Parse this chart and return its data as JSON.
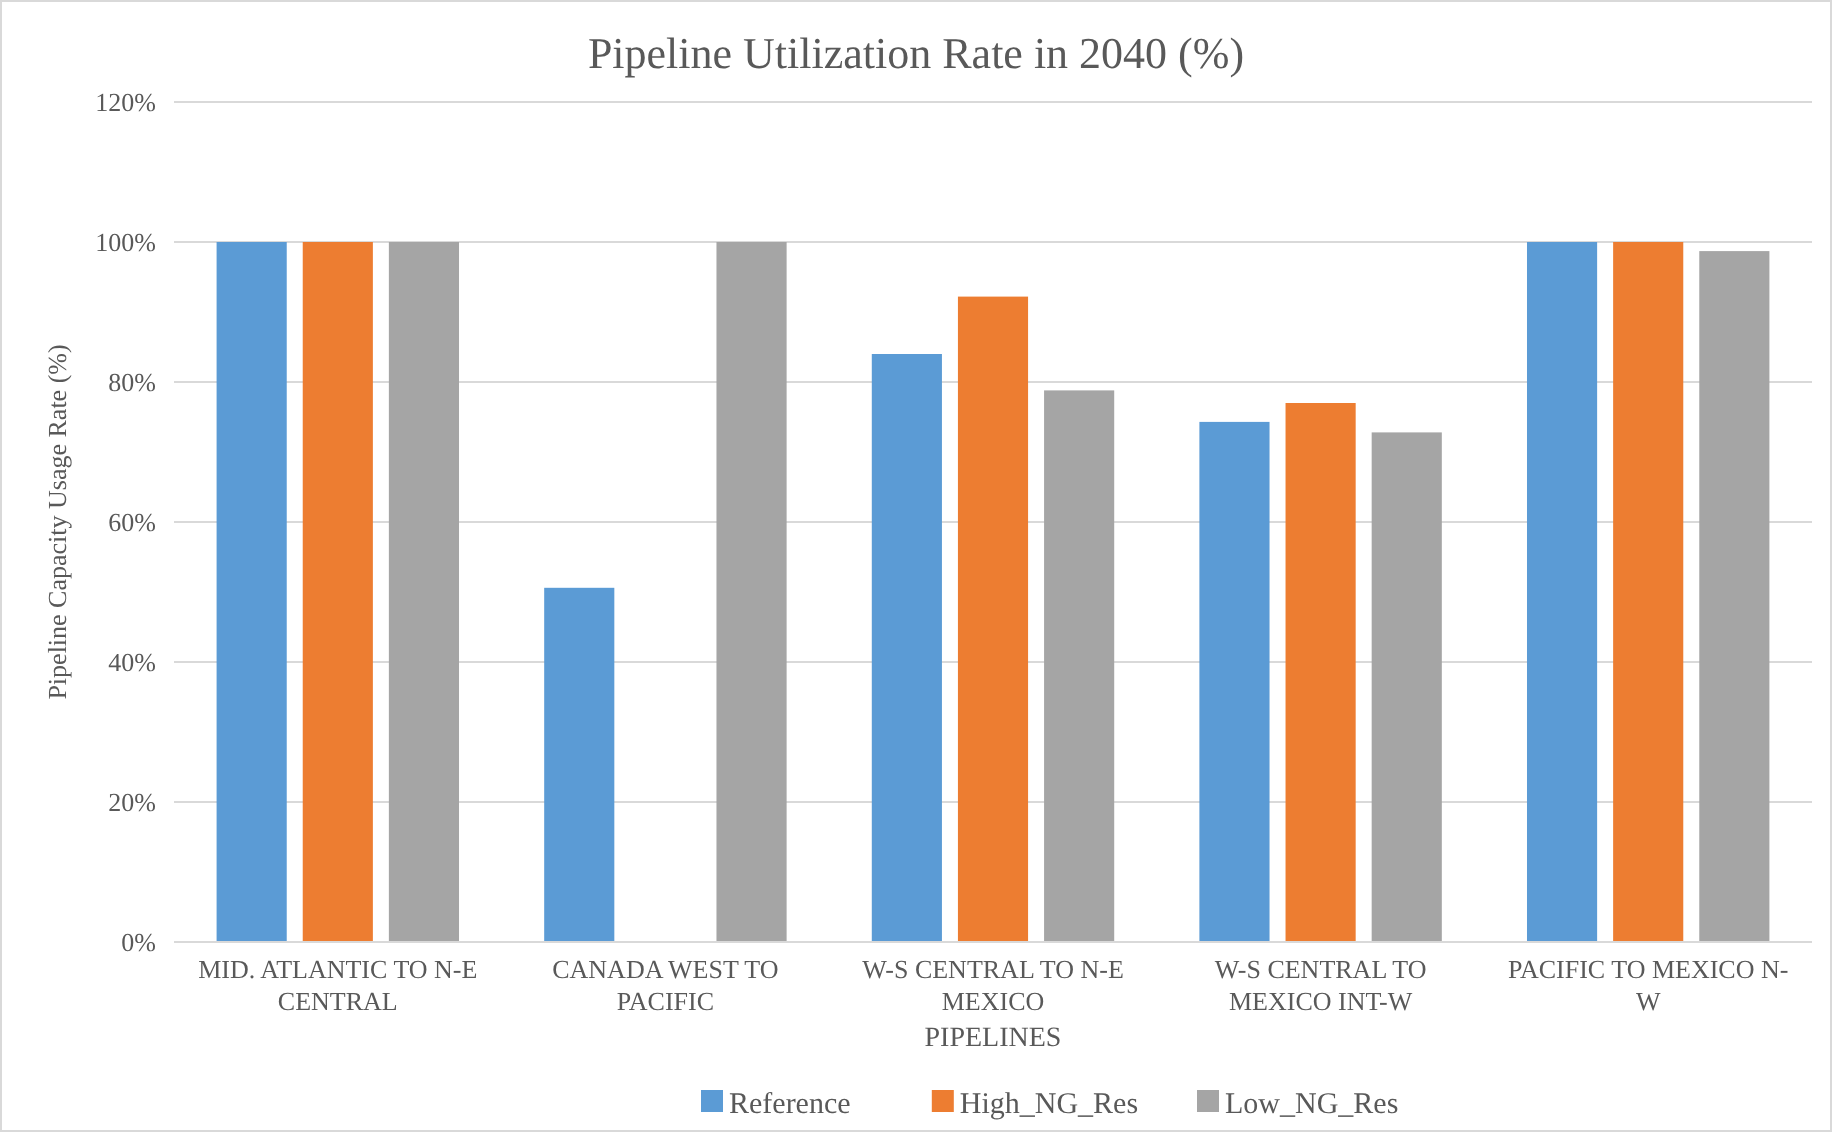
{
  "chart_data": {
    "type": "bar",
    "title": "Pipeline Utilization Rate in 2040 (%)",
    "xlabel": "PIPELINES",
    "ylabel": "Pipeline Capacity Usage Rate (%)",
    "categories": [
      "MID. ATLANTIC TO N-E CENTRAL",
      "CANADA WEST TO PACIFIC",
      "W-S CENTRAL TO N-E MEXICO",
      "W-S CENTRAL TO MEXICO INT-W",
      "PACIFIC TO MEXICO N-W"
    ],
    "series": [
      {
        "name": "Reference",
        "color": "#5b9bd5",
        "values": [
          100,
          50.6,
          84,
          74.3,
          100
        ]
      },
      {
        "name": "High_NG_Res",
        "color": "#ed7d31",
        "values": [
          100,
          0,
          92.2,
          77,
          100
        ]
      },
      {
        "name": "Low_NG_Res",
        "color": "#a5a5a5",
        "values": [
          100,
          100,
          78.8,
          72.8,
          98.7
        ]
      }
    ],
    "ylim": [
      0,
      120
    ],
    "yticks": [
      {
        "value": 0,
        "label": "0%"
      },
      {
        "value": 20,
        "label": "20%"
      },
      {
        "value": 40,
        "label": "40%"
      },
      {
        "value": 60,
        "label": "60%"
      },
      {
        "value": 80,
        "label": "80%"
      },
      {
        "value": 100,
        "label": "100%"
      },
      {
        "value": 120,
        "label": "120%"
      }
    ],
    "grid": "y",
    "legend": "bottom"
  }
}
